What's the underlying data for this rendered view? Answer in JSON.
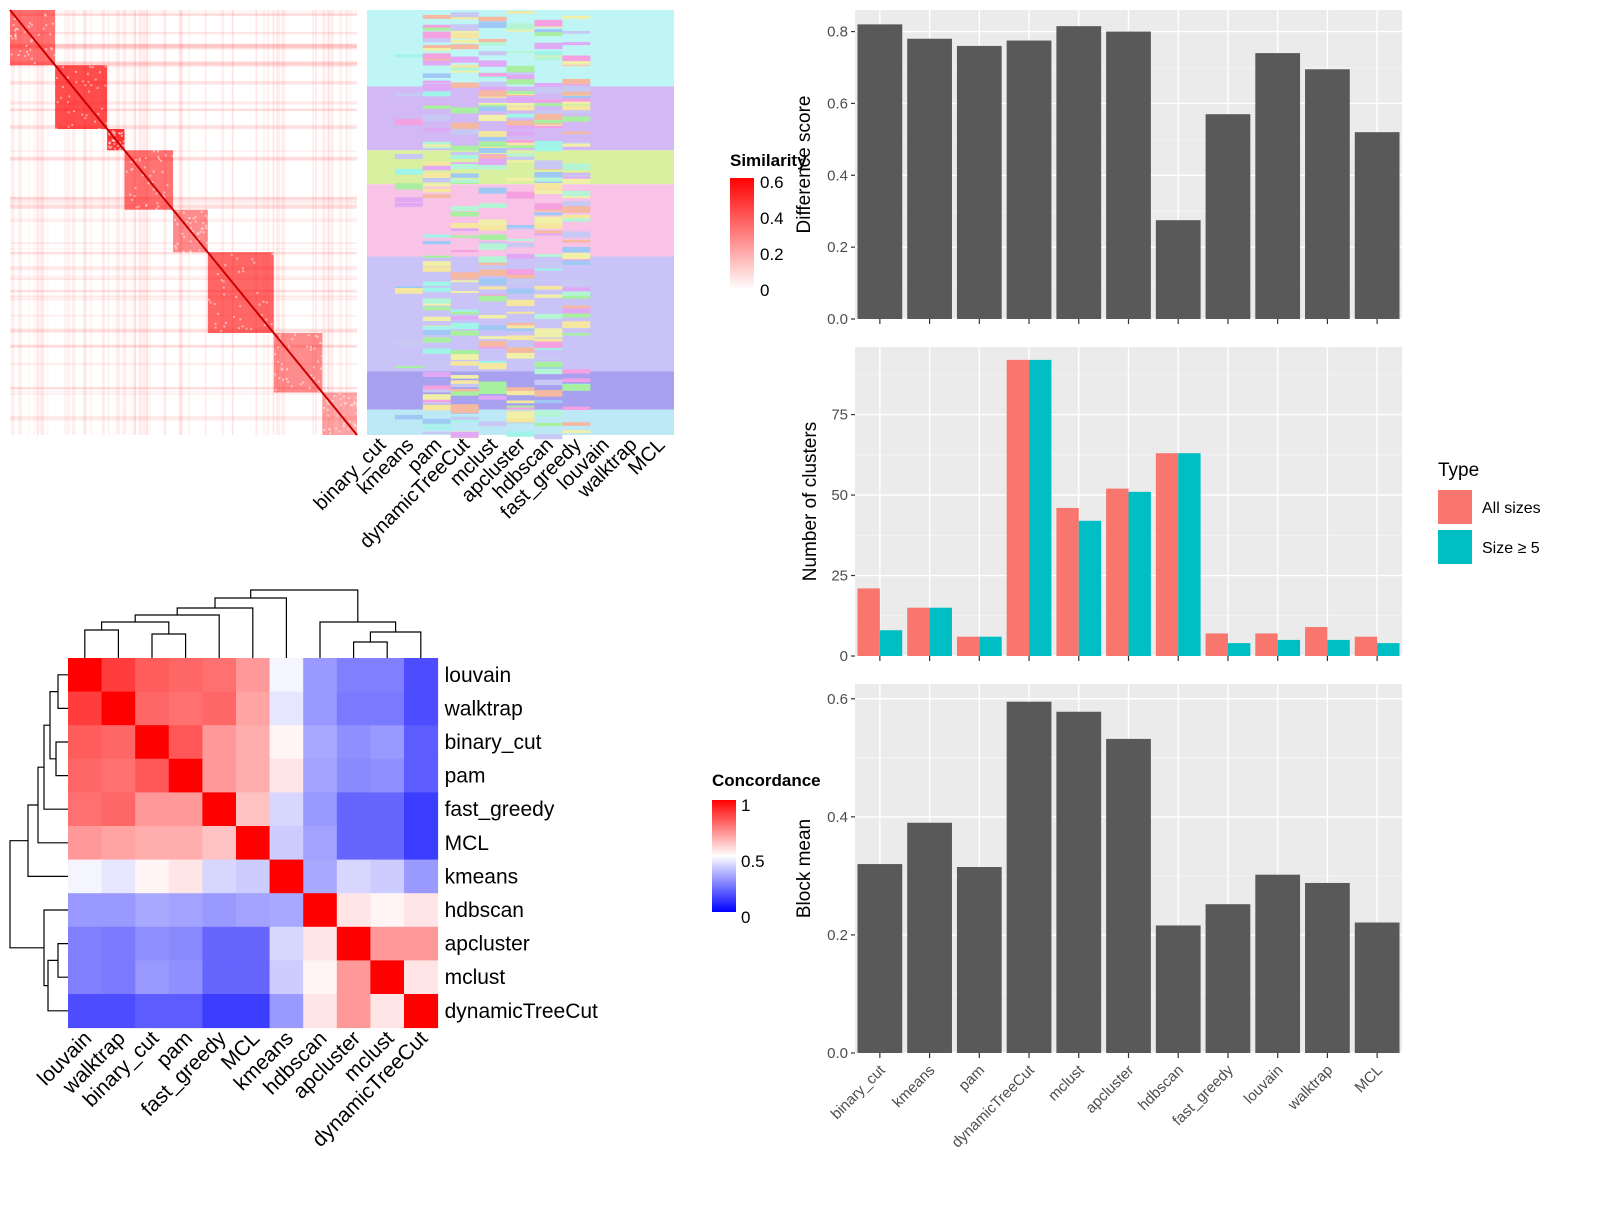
{
  "colors": {
    "panel_bg": "#EBEBEB",
    "grid": "#FFFFFF",
    "bar": "#595959",
    "all_sizes": "#F8766D",
    "size_ge5": "#00BFC4",
    "sim_high": "#FF0000",
    "conc_low": "#0000FF",
    "conc_mid": "#FFFFFF",
    "conc_high": "#FF0000"
  },
  "methods": [
    "binary_cut",
    "kmeans",
    "pam",
    "dynamicTreeCut",
    "mclust",
    "apcluster",
    "hdbscan",
    "fast_greedy",
    "louvain",
    "walktrap",
    "MCL"
  ],
  "chart_data": [
    {
      "type": "heatmap",
      "title": "",
      "legend_title": "Similarity",
      "legend_ticks": [
        "0.6",
        "0.4",
        "0.2",
        "0"
      ],
      "columns": [
        "binary_cut",
        "kmeans",
        "pam",
        "dynamicTreeCut",
        "mclust",
        "apcluster",
        "hdbscan",
        "fast_greedy",
        "louvain",
        "walktrap",
        "MCL"
      ]
    },
    {
      "type": "heatmap",
      "title": "",
      "legend_title": "Concordance",
      "legend_ticks": [
        "1",
        "0.5",
        "0"
      ],
      "row_labels": [
        "louvain",
        "walktrap",
        "binary_cut",
        "pam",
        "fast_greedy",
        "MCL",
        "kmeans",
        "hdbscan",
        "apcluster",
        "mclust",
        "dynamicTreeCut"
      ],
      "col_labels": [
        "louvain",
        "walktrap",
        "binary_cut",
        "pam",
        "fast_greedy",
        "MCL",
        "kmeans",
        "hdbscan",
        "apcluster",
        "mclust",
        "dynamicTreeCut"
      ],
      "matrix": [
        [
          1.0,
          0.88,
          0.82,
          0.8,
          0.78,
          0.7,
          0.48,
          0.3,
          0.25,
          0.25,
          0.15
        ],
        [
          0.88,
          1.0,
          0.8,
          0.78,
          0.8,
          0.68,
          0.45,
          0.3,
          0.24,
          0.24,
          0.15
        ],
        [
          0.82,
          0.8,
          1.0,
          0.83,
          0.7,
          0.66,
          0.52,
          0.33,
          0.28,
          0.3,
          0.18
        ],
        [
          0.8,
          0.78,
          0.83,
          1.0,
          0.7,
          0.66,
          0.55,
          0.32,
          0.27,
          0.28,
          0.18
        ],
        [
          0.78,
          0.8,
          0.7,
          0.7,
          1.0,
          0.62,
          0.42,
          0.3,
          0.2,
          0.2,
          0.12
        ],
        [
          0.7,
          0.68,
          0.66,
          0.66,
          0.62,
          1.0,
          0.4,
          0.32,
          0.2,
          0.2,
          0.12
        ],
        [
          0.48,
          0.45,
          0.52,
          0.55,
          0.42,
          0.4,
          1.0,
          0.33,
          0.42,
          0.4,
          0.3
        ],
        [
          0.3,
          0.3,
          0.33,
          0.32,
          0.3,
          0.32,
          0.33,
          1.0,
          0.55,
          0.52,
          0.55
        ],
        [
          0.25,
          0.24,
          0.28,
          0.27,
          0.2,
          0.2,
          0.42,
          0.55,
          1.0,
          0.7,
          0.7
        ],
        [
          0.25,
          0.24,
          0.3,
          0.28,
          0.2,
          0.2,
          0.4,
          0.52,
          0.7,
          1.0,
          0.55
        ],
        [
          0.15,
          0.15,
          0.18,
          0.18,
          0.12,
          0.12,
          0.3,
          0.55,
          0.7,
          0.55,
          1.0
        ]
      ]
    },
    {
      "type": "bar",
      "title": "",
      "xlabel": "",
      "ylabel": "Difference score",
      "categories": [
        "binary_cut",
        "kmeans",
        "pam",
        "dynamicTreeCut",
        "mclust",
        "apcluster",
        "hdbscan",
        "fast_greedy",
        "louvain",
        "walktrap",
        "MCL"
      ],
      "values": [
        0.82,
        0.78,
        0.76,
        0.775,
        0.815,
        0.8,
        0.275,
        0.57,
        0.74,
        0.695,
        0.52
      ],
      "ylim": [
        0,
        0.86
      ],
      "yticks": [
        0,
        0.2,
        0.4,
        0.6,
        0.8
      ],
      "ytick_labels": [
        "0.0",
        "0.2",
        "0.4",
        "0.6",
        "0.8"
      ],
      "grid": true
    },
    {
      "type": "bar",
      "title": "",
      "xlabel": "",
      "ylabel": "Number of clusters",
      "legend_title": "Type",
      "legend_position": "right",
      "categories": [
        "binary_cut",
        "kmeans",
        "pam",
        "dynamicTreeCut",
        "mclust",
        "apcluster",
        "hdbscan",
        "fast_greedy",
        "louvain",
        "walktrap",
        "MCL"
      ],
      "series": [
        {
          "name": "All sizes",
          "values": [
            21,
            15,
            6,
            92,
            46,
            52,
            63,
            7,
            7,
            9,
            6
          ]
        },
        {
          "name": "Size ≥ 5",
          "values": [
            8,
            15,
            6,
            92,
            42,
            51,
            63,
            4,
            5,
            5,
            4
          ]
        }
      ],
      "ylim": [
        0,
        96
      ],
      "yticks": [
        0,
        25,
        50,
        75
      ],
      "ytick_labels": [
        "0",
        "25",
        "50",
        "75"
      ],
      "grid": true
    },
    {
      "type": "bar",
      "title": "",
      "xlabel": "",
      "ylabel": "Block mean",
      "categories": [
        "binary_cut",
        "kmeans",
        "pam",
        "dynamicTreeCut",
        "mclust",
        "apcluster",
        "hdbscan",
        "fast_greedy",
        "louvain",
        "walktrap",
        "MCL"
      ],
      "values": [
        0.32,
        0.39,
        0.315,
        0.595,
        0.578,
        0.532,
        0.216,
        0.252,
        0.302,
        0.288,
        0.221
      ],
      "ylim": [
        0,
        0.625
      ],
      "yticks": [
        0,
        0.2,
        0.4,
        0.6
      ],
      "ytick_labels": [
        "0.0",
        "0.2",
        "0.4",
        "0.6"
      ],
      "grid": true
    }
  ]
}
